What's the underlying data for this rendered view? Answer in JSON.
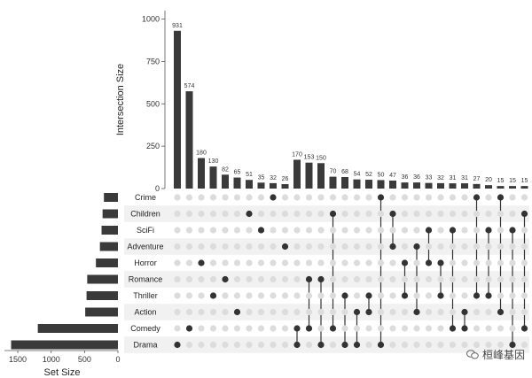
{
  "chart_data": {
    "type": "upset",
    "intersection_axis": {
      "title": "Intersection Size",
      "ylim": [
        0,
        1050
      ],
      "ticks": [
        0,
        250,
        500,
        750,
        1000
      ],
      "tick_labels": [
        "0",
        "250",
        "500",
        "750",
        "1000"
      ]
    },
    "set_size_axis": {
      "title": "Set Size",
      "xlim": [
        1700,
        0
      ],
      "ticks": [
        1500,
        1000,
        500,
        0
      ],
      "tick_labels": [
        "1500",
        "1000",
        "500",
        "0"
      ]
    },
    "sets": [
      "Crime",
      "Children",
      "SciFi",
      "Adventure",
      "Horror",
      "Romance",
      "Thriller",
      "Action",
      "Comedy",
      "Drama"
    ],
    "set_sizes": [
      210,
      230,
      245,
      270,
      330,
      460,
      470,
      490,
      1200,
      1600
    ],
    "intersections": [
      {
        "size": 931,
        "label": "931",
        "sets": [
          "Drama"
        ]
      },
      {
        "size": 574,
        "label": "574",
        "sets": [
          "Comedy"
        ]
      },
      {
        "size": 180,
        "label": "180",
        "sets": [
          "Horror"
        ]
      },
      {
        "size": 130,
        "label": "130",
        "sets": [
          "Thriller"
        ]
      },
      {
        "size": 82,
        "label": "82",
        "sets": [
          "Romance"
        ]
      },
      {
        "size": 65,
        "label": "65",
        "sets": [
          "Action"
        ]
      },
      {
        "size": 51,
        "label": "51",
        "sets": [
          "Children"
        ]
      },
      {
        "size": 35,
        "label": "35",
        "sets": [
          "SciFi"
        ]
      },
      {
        "size": 32,
        "label": "32",
        "sets": [
          "Crime"
        ]
      },
      {
        "size": 26,
        "label": "26",
        "sets": [
          "Adventure"
        ]
      },
      {
        "size": 170,
        "label": "170",
        "sets": [
          "Comedy",
          "Drama"
        ]
      },
      {
        "size": 153,
        "label": "153",
        "sets": [
          "Romance",
          "Comedy"
        ]
      },
      {
        "size": 150,
        "label": "150",
        "sets": [
          "Romance",
          "Drama"
        ]
      },
      {
        "size": 70,
        "label": "70",
        "sets": [
          "Children",
          "Comedy"
        ]
      },
      {
        "size": 68,
        "label": "68",
        "sets": [
          "Thriller",
          "Drama"
        ]
      },
      {
        "size": 54,
        "label": "54",
        "sets": [
          "Action",
          "Drama"
        ]
      },
      {
        "size": 52,
        "label": "52",
        "sets": [
          "Thriller",
          "Action"
        ]
      },
      {
        "size": 50,
        "label": "50",
        "sets": [
          "Crime",
          "Drama"
        ]
      },
      {
        "size": 47,
        "label": "47",
        "sets": [
          "Children",
          "Adventure"
        ]
      },
      {
        "size": 36,
        "label": "36",
        "sets": [
          "Horror",
          "Thriller"
        ]
      },
      {
        "size": 36,
        "label": "36",
        "sets": [
          "Adventure",
          "Action"
        ]
      },
      {
        "size": 33,
        "label": "33",
        "sets": [
          "SciFi",
          "Horror"
        ]
      },
      {
        "size": 32,
        "label": "32",
        "sets": [
          "Horror",
          "Thriller"
        ]
      },
      {
        "size": 31,
        "label": "31",
        "sets": [
          "SciFi",
          "Comedy"
        ]
      },
      {
        "size": 31,
        "label": "31",
        "sets": [
          "Action",
          "Comedy"
        ]
      },
      {
        "size": 27,
        "label": "27",
        "sets": [
          "Crime",
          "Thriller"
        ]
      },
      {
        "size": 20,
        "label": "20",
        "sets": [
          "SciFi",
          "Thriller"
        ]
      },
      {
        "size": 15,
        "label": "15",
        "sets": [
          "Crime",
          "Action"
        ]
      },
      {
        "size": 15,
        "label": "15",
        "sets": [
          "SciFi",
          "Drama"
        ]
      },
      {
        "size": 15,
        "label": "15",
        "sets": [
          "Children",
          "Comedy"
        ]
      }
    ],
    "colors": {
      "bar": "#3a3a3a",
      "dot_active": "#333333",
      "dot_inactive": "#dcdcdc",
      "stripe": "#f1f1f1"
    }
  },
  "watermark": {
    "text": "桓峰基因",
    "icon": "wechat-icon"
  }
}
